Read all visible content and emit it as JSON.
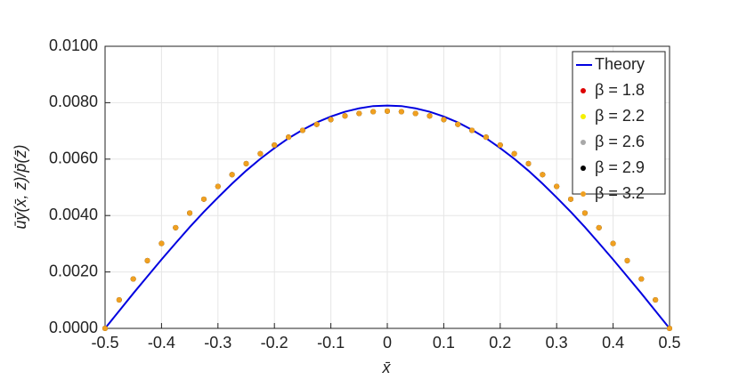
{
  "chart_data": {
    "type": "line",
    "x_label": "x̄",
    "y_label": "ūȳ(x̄, z̄)/p̄(z̄)",
    "x": [
      -0.5,
      -0.475,
      -0.45,
      -0.425,
      -0.4,
      -0.375,
      -0.35,
      -0.325,
      -0.3,
      -0.275,
      -0.25,
      -0.225,
      -0.2,
      -0.175,
      -0.15,
      -0.125,
      -0.1,
      -0.075,
      -0.05,
      -0.025,
      0,
      0.025,
      0.05,
      0.075,
      0.1,
      0.125,
      0.15,
      0.175,
      0.2,
      0.225,
      0.25,
      0.275,
      0.3,
      0.325,
      0.35,
      0.375,
      0.4,
      0.425,
      0.45,
      0.475,
      0.5
    ],
    "series": [
      {
        "name": "Theory",
        "type": "line",
        "color": "#0000e0",
        "values": [
          0,
          0.00062,
          0.00124,
          0.00184,
          0.00244,
          0.00302,
          0.00359,
          0.00413,
          0.00464,
          0.00513,
          0.00559,
          0.00601,
          0.00639,
          0.00674,
          0.00704,
          0.0073,
          0.00751,
          0.00768,
          0.0078,
          0.00788,
          0.0079,
          0.00788,
          0.0078,
          0.00768,
          0.00751,
          0.0073,
          0.00704,
          0.00674,
          0.00639,
          0.00601,
          0.00559,
          0.00513,
          0.00464,
          0.00413,
          0.00359,
          0.00302,
          0.00244,
          0.00184,
          0.00124,
          0.00062,
          0
        ]
      },
      {
        "name": "β = 1.8",
        "type": "scatter",
        "color": "#dd0000",
        "values": [
          0,
          0.00101,
          0.00175,
          0.0024,
          0.00301,
          0.00357,
          0.00409,
          0.00458,
          0.00503,
          0.00545,
          0.00584,
          0.00619,
          0.0065,
          0.00678,
          0.00702,
          0.00723,
          0.0074,
          0.00753,
          0.00762,
          0.00768,
          0.0077,
          0.00768,
          0.00762,
          0.00753,
          0.0074,
          0.00723,
          0.00702,
          0.00678,
          0.0065,
          0.00619,
          0.00584,
          0.00545,
          0.00503,
          0.00458,
          0.00409,
          0.00357,
          0.00301,
          0.0024,
          0.00175,
          0.00101,
          0
        ]
      },
      {
        "name": "β = 2.2",
        "type": "scatter",
        "color": "#f5f000",
        "values": [
          0,
          0.00101,
          0.00175,
          0.0024,
          0.00301,
          0.00357,
          0.00409,
          0.00458,
          0.00503,
          0.00545,
          0.00584,
          0.00619,
          0.0065,
          0.00678,
          0.00702,
          0.00723,
          0.0074,
          0.00753,
          0.00762,
          0.00768,
          0.0077,
          0.00768,
          0.00762,
          0.00753,
          0.0074,
          0.00723,
          0.00702,
          0.00678,
          0.0065,
          0.00619,
          0.00584,
          0.00545,
          0.00503,
          0.00458,
          0.00409,
          0.00357,
          0.00301,
          0.0024,
          0.00175,
          0.00101,
          0
        ]
      },
      {
        "name": "β = 2.6",
        "type": "scatter",
        "color": "#a8a8a8",
        "values": [
          0,
          0.00101,
          0.00175,
          0.0024,
          0.00301,
          0.00357,
          0.00409,
          0.00458,
          0.00503,
          0.00545,
          0.00584,
          0.00619,
          0.0065,
          0.00678,
          0.00702,
          0.00723,
          0.0074,
          0.00753,
          0.00762,
          0.00768,
          0.0077,
          0.00768,
          0.00762,
          0.00753,
          0.0074,
          0.00723,
          0.00702,
          0.00678,
          0.0065,
          0.00619,
          0.00584,
          0.00545,
          0.00503,
          0.00458,
          0.00409,
          0.00357,
          0.00301,
          0.0024,
          0.00175,
          0.00101,
          0
        ]
      },
      {
        "name": "β = 2.9",
        "type": "scatter",
        "color": "#000000",
        "values": [
          0,
          0.00101,
          0.00175,
          0.0024,
          0.00301,
          0.00357,
          0.00409,
          0.00458,
          0.00503,
          0.00545,
          0.00584,
          0.00619,
          0.0065,
          0.00678,
          0.00702,
          0.00723,
          0.0074,
          0.00753,
          0.00762,
          0.00768,
          0.0077,
          0.00768,
          0.00762,
          0.00753,
          0.0074,
          0.00723,
          0.00702,
          0.00678,
          0.0065,
          0.00619,
          0.00584,
          0.00545,
          0.00503,
          0.00458,
          0.00409,
          0.00357,
          0.00301,
          0.0024,
          0.00175,
          0.00101,
          0
        ]
      },
      {
        "name": "β = 3.2",
        "type": "scatter",
        "color": "#f0a020",
        "values": [
          0,
          0.00101,
          0.00175,
          0.0024,
          0.00301,
          0.00357,
          0.00409,
          0.00458,
          0.00503,
          0.00545,
          0.00584,
          0.00619,
          0.0065,
          0.00678,
          0.00702,
          0.00723,
          0.0074,
          0.00753,
          0.00762,
          0.00768,
          0.0077,
          0.00768,
          0.00762,
          0.00753,
          0.0074,
          0.00723,
          0.00702,
          0.00678,
          0.0065,
          0.00619,
          0.00584,
          0.00545,
          0.00503,
          0.00458,
          0.00409,
          0.00357,
          0.00301,
          0.0024,
          0.00175,
          0.00101,
          0
        ]
      }
    ],
    "xlim": [
      -0.5,
      0.5
    ],
    "xticks": [
      -0.5,
      -0.4,
      -0.3,
      -0.2,
      -0.1,
      0,
      0.1,
      0.2,
      0.3,
      0.4,
      0.5
    ],
    "ylim": [
      0,
      0.01
    ],
    "yticks": [
      {
        "value": 0,
        "label": "0.0000"
      },
      {
        "value": 0.002,
        "label": "0.0020"
      },
      {
        "value": 0.004,
        "label": "0.0040"
      },
      {
        "value": 0.006,
        "label": "0.0060"
      },
      {
        "value": 0.008,
        "label": "0.0080"
      },
      {
        "value": 0.01,
        "label": "0.0100"
      }
    ],
    "grid": true,
    "legend": "top-right"
  }
}
